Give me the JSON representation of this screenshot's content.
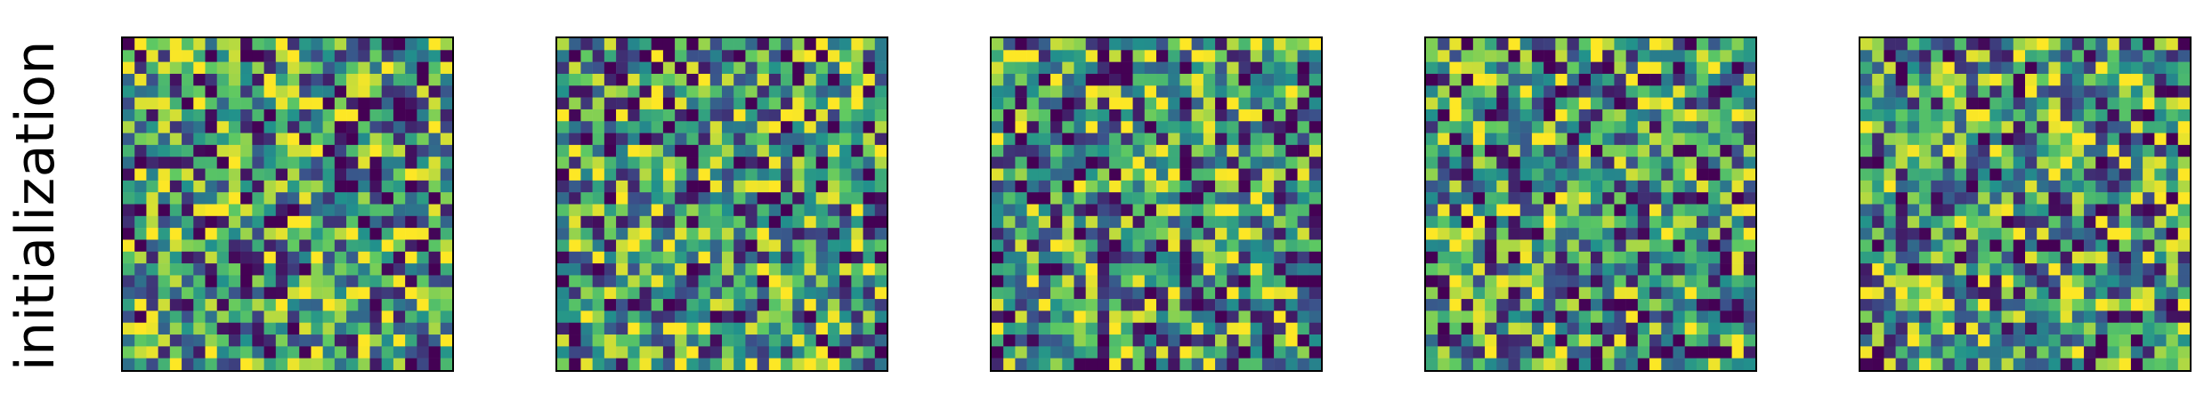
{
  "figure": {
    "row_label": "initialization",
    "colormap": [
      "#440154",
      "#3b528b",
      "#21918c",
      "#5ec962",
      "#fde725"
    ]
  },
  "chart_data": [
    {
      "type": "heatmap",
      "grid": [
        28,
        28
      ],
      "seed": 11,
      "colorscale": "viridis",
      "ticks": "none"
    },
    {
      "type": "heatmap",
      "grid": [
        28,
        28
      ],
      "seed": 23,
      "colorscale": "viridis",
      "ticks": "none"
    },
    {
      "type": "heatmap",
      "grid": [
        28,
        28
      ],
      "seed": 37,
      "colorscale": "viridis",
      "ticks": "none"
    },
    {
      "type": "heatmap",
      "grid": [
        28,
        28
      ],
      "seed": 51,
      "colorscale": "viridis",
      "ticks": "none"
    },
    {
      "type": "heatmap",
      "grid": [
        28,
        28
      ],
      "seed": 67,
      "colorscale": "viridis",
      "ticks": "none"
    }
  ]
}
